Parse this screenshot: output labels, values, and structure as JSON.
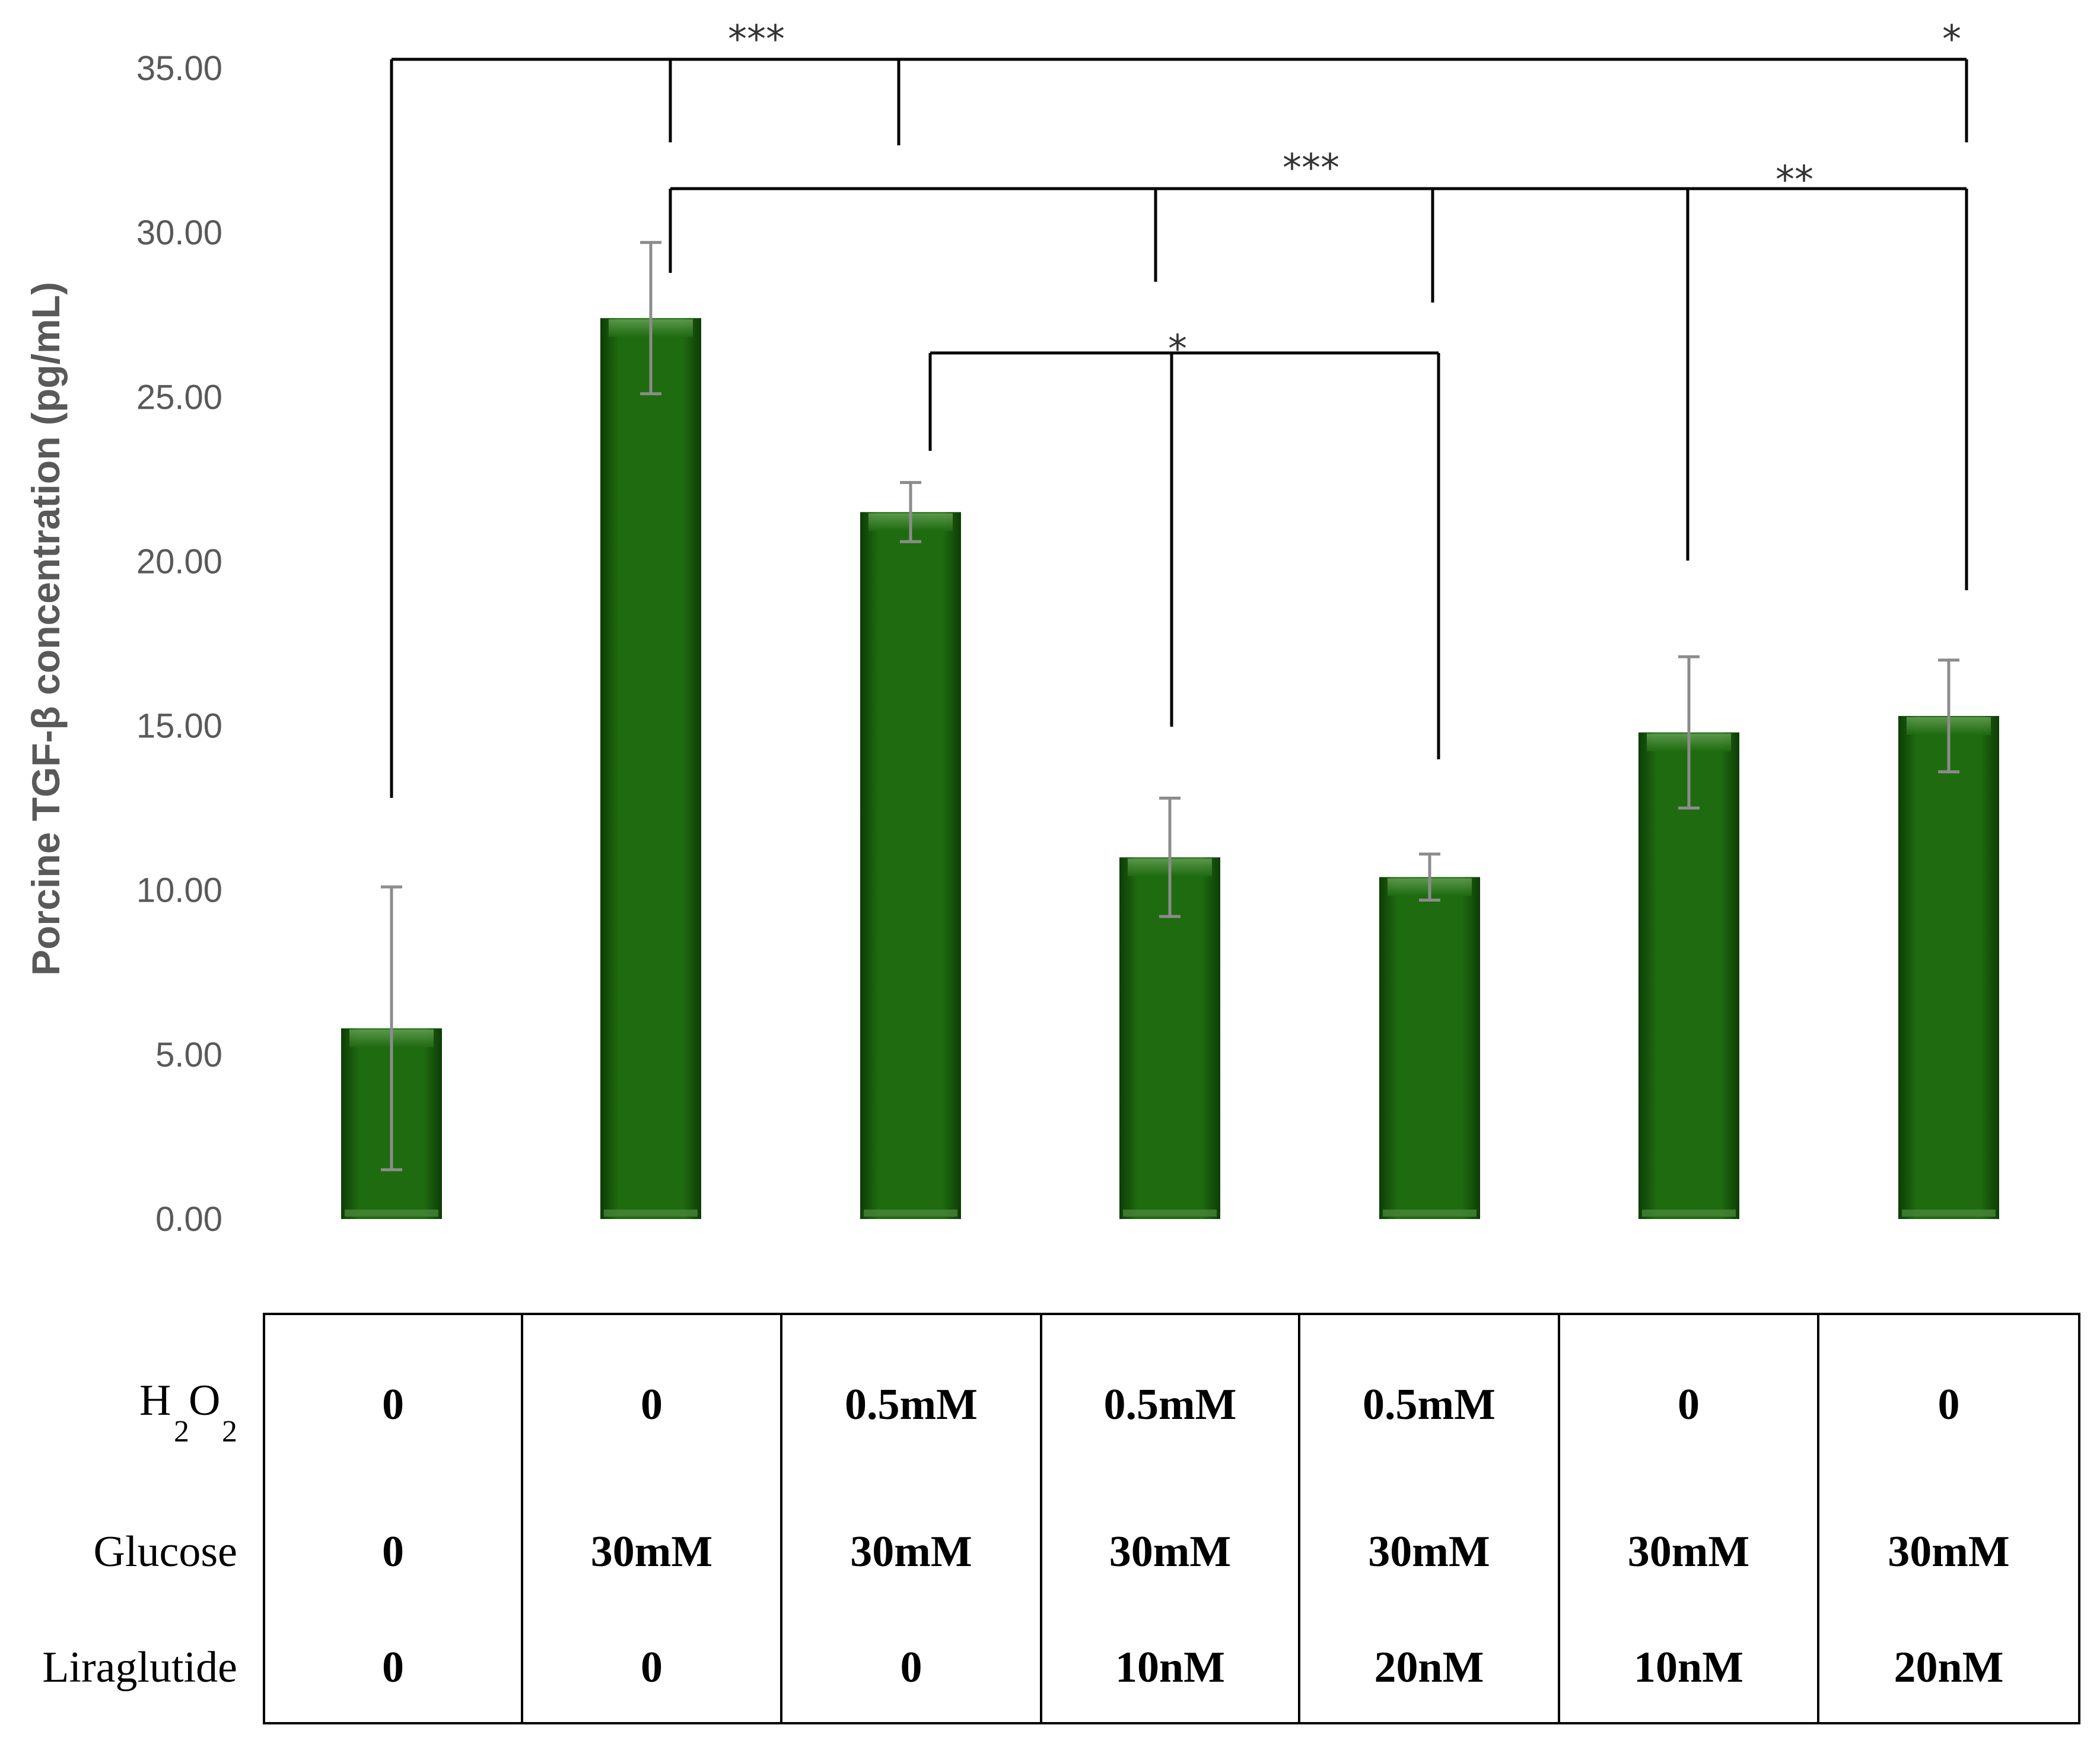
{
  "chart_data": {
    "type": "bar",
    "ylabel": "Porcine TGF-β concentration (pg/mL)",
    "ylim": [
      0,
      35
    ],
    "yticks": [
      "0.00",
      "5.00",
      "10.00",
      "15.00",
      "20.00",
      "25.00",
      "30.00",
      "35.00"
    ],
    "grid": false,
    "bar_color": "#1f6b10",
    "values": [
      5.8,
      27.4,
      21.5,
      11.0,
      10.4,
      14.8,
      15.3
    ],
    "errors": [
      4.3,
      2.3,
      0.9,
      1.8,
      0.7,
      2.3,
      1.7
    ],
    "significance": [
      {
        "label": "***",
        "from": 0,
        "to": [
          1,
          2
        ]
      },
      {
        "label": "*",
        "from": 0,
        "to": [
          6
        ]
      },
      {
        "label": "***",
        "from": 1,
        "to": [
          3,
          4
        ]
      },
      {
        "label": "**",
        "from": 1,
        "to": [
          5,
          6
        ]
      },
      {
        "label": "*",
        "from": 2,
        "to": [
          3,
          4
        ]
      }
    ],
    "conditions_table": {
      "rows": [
        {
          "label_main": "H",
          "label_sub1": "2",
          "label_mid": "O",
          "label_sub2": "2",
          "cells": [
            "0",
            "0",
            "0.5mM",
            "0.5mM",
            "0.5mM",
            "0",
            "0"
          ]
        },
        {
          "label": "Glucose",
          "cells": [
            "0",
            "30mM",
            "30mM",
            "30mM",
            "30mM",
            "30mM",
            "30mM"
          ]
        },
        {
          "label": "Liraglutide",
          "cells": [
            "0",
            "0",
            "0",
            "10nM",
            "20nM",
            "10nM",
            "20nM"
          ]
        }
      ]
    }
  }
}
